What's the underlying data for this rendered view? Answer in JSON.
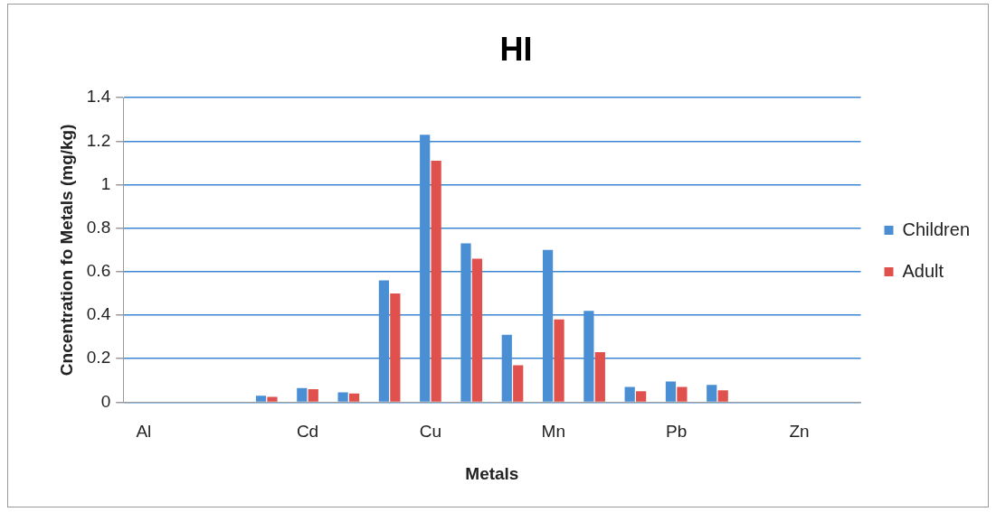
{
  "chart_data": {
    "type": "bar",
    "title": "HI",
    "xlabel": "Metals",
    "ylabel": "Cncentration fo Metals (mg/kg)",
    "categories": [
      "Al",
      null,
      null,
      null,
      "Cd",
      null,
      null,
      "Cu",
      null,
      null,
      "Mn",
      null,
      null,
      "Pb",
      null,
      null,
      "Zn",
      null
    ],
    "series": [
      {
        "name": "Children",
        "color": "#4a8fd4",
        "values": [
          null,
          null,
          null,
          0.03,
          0.065,
          0.045,
          0.56,
          1.23,
          0.73,
          0.31,
          0.7,
          0.42,
          0.07,
          0.095,
          0.08,
          null,
          null,
          null
        ]
      },
      {
        "name": "Adult",
        "color": "#e0504c",
        "values": [
          null,
          null,
          null,
          0.025,
          0.06,
          0.04,
          0.5,
          1.11,
          0.66,
          0.17,
          0.38,
          0.23,
          0.05,
          0.07,
          0.055,
          null,
          null,
          null
        ]
      }
    ],
    "ylim": [
      0,
      1.4
    ],
    "yticks": [
      0,
      0.2,
      0.4,
      0.6,
      0.8,
      1,
      1.2,
      1.4
    ],
    "grid": "y",
    "legend": "right"
  }
}
